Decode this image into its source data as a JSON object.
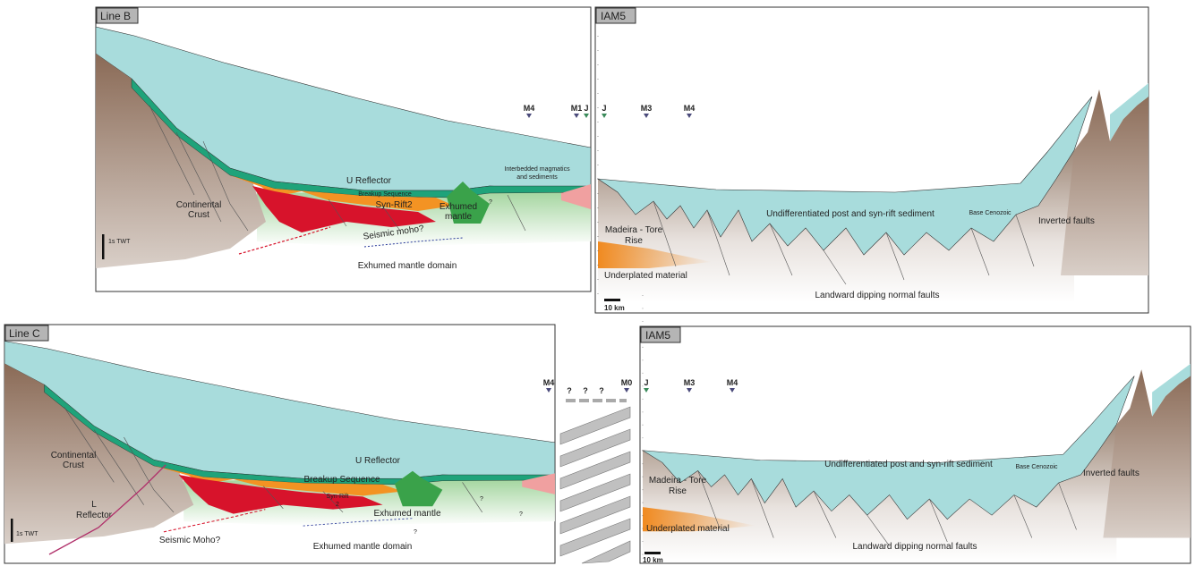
{
  "panels": [
    {
      "title": "Line B",
      "markers": [
        "M4",
        "M1",
        "J"
      ],
      "labels": [
        [
          "Interbedded magmatics",
          "and sediments"
        ],
        "U Reflector",
        "Breakup Sequence",
        "Syn-Rift2",
        [
          "Exhumed",
          "mantle"
        ],
        [
          "Continental",
          "Crust"
        ],
        "Seismic moho?",
        "Exhumed mantle domain",
        "1s TWT",
        "?"
      ]
    },
    {
      "title": "IAM5",
      "markers": [
        "J",
        "M3",
        "M4"
      ],
      "labels": [
        "Undifferentiated post and syn-rift sediment",
        "Base Cenozoic",
        "Inverted faults",
        [
          "Madeira - Tore",
          "Rise"
        ],
        "Underplated material",
        "Landward dipping normal faults",
        "10 km"
      ]
    },
    {
      "title": "Line C",
      "markers": [
        "M4"
      ],
      "labels": [
        [
          "Continental",
          "Crust"
        ],
        "U Reflector",
        "Breakup Sequence",
        [
          "Syn-Rift",
          "2"
        ],
        "Exhumed mantle",
        [
          "L",
          "Reflector"
        ],
        "Seismic Moho?",
        "Exhumed mantle domain",
        "1s TWT",
        "?",
        "?",
        "?"
      ]
    },
    {
      "title": "IAM5",
      "markers": [
        "J",
        "M3",
        "M4"
      ],
      "labels": [
        "Undifferentiated post and syn-rift sediment",
        "Base Cenozoic",
        "Inverted faults",
        [
          "Madeira - Tore",
          "Rise"
        ],
        "Underplated material",
        "Landward dipping normal faults",
        "10 km"
      ]
    }
  ],
  "connector": {
    "questions": [
      "?",
      "?",
      "?"
    ],
    "markers": [
      "M0"
    ]
  }
}
